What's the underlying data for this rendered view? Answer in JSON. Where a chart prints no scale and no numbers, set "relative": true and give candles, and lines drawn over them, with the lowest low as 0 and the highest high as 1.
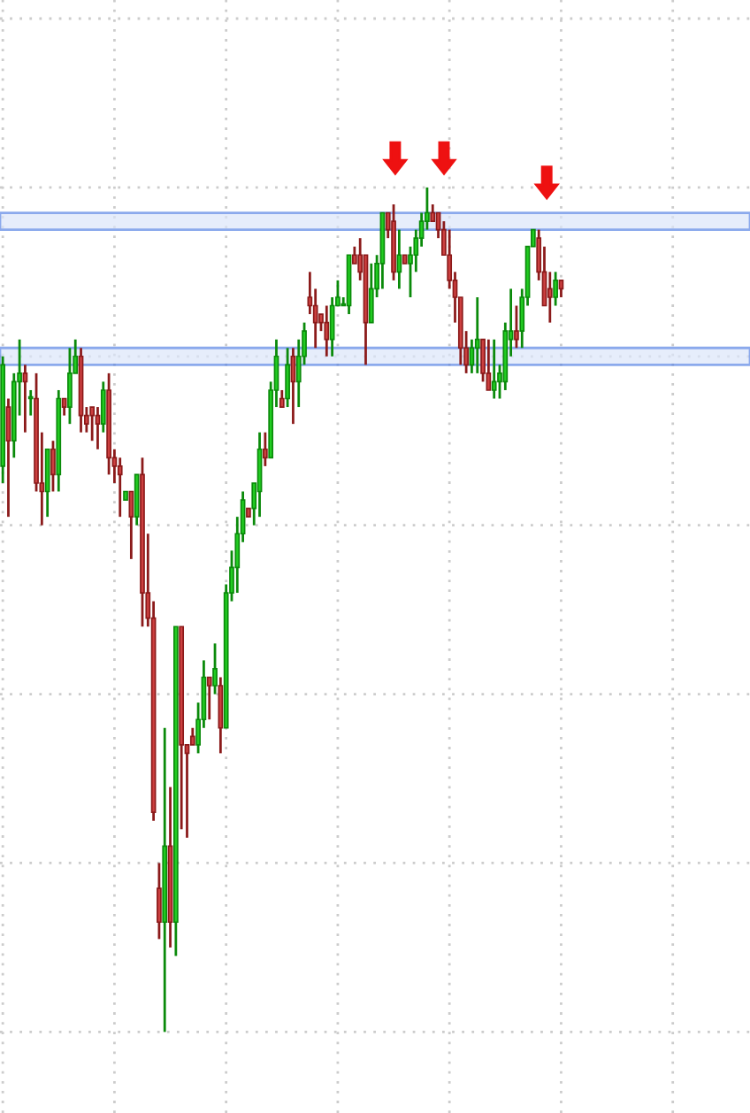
{
  "chart_data": {
    "type": "candlestick",
    "relative": true,
    "grid": true,
    "categories": [
      null,
      null,
      null,
      null,
      null,
      null,
      null,
      null,
      null,
      null,
      null,
      null,
      null,
      null,
      null,
      null,
      null,
      null,
      null,
      null,
      null,
      null,
      null,
      null,
      null,
      null,
      null,
      null,
      null,
      null,
      null,
      null,
      null,
      null,
      null,
      null,
      null,
      null,
      null,
      null,
      null,
      null,
      null,
      null,
      null,
      null,
      null,
      null,
      null,
      null,
      null,
      null,
      null,
      null,
      null,
      null,
      null,
      null,
      null,
      null,
      null,
      null,
      null,
      null,
      null,
      null,
      null,
      null,
      null,
      null,
      null,
      null,
      null,
      null,
      null,
      null,
      null,
      null,
      null,
      null,
      null,
      null,
      null,
      null,
      null,
      null,
      null,
      null,
      null,
      null,
      null,
      null,
      null,
      null,
      null,
      null,
      null,
      null,
      null,
      null,
      null
    ],
    "ohlc": [
      [
        0.67,
        0.8,
        0.65,
        0.79
      ],
      [
        0.74,
        0.75,
        0.61,
        0.7
      ],
      [
        0.7,
        0.78,
        0.68,
        0.77
      ],
      [
        0.77,
        0.82,
        0.73,
        0.78
      ],
      [
        0.78,
        0.79,
        0.71,
        0.77
      ],
      [
        0.75,
        0.76,
        0.73,
        0.75
      ],
      [
        0.75,
        0.78,
        0.64,
        0.65
      ],
      [
        0.65,
        0.71,
        0.6,
        0.64
      ],
      [
        0.64,
        0.69,
        0.61,
        0.69
      ],
      [
        0.69,
        0.7,
        0.64,
        0.66
      ],
      [
        0.66,
        0.76,
        0.64,
        0.75
      ],
      [
        0.75,
        0.75,
        0.73,
        0.74
      ],
      [
        0.74,
        0.81,
        0.72,
        0.78
      ],
      [
        0.78,
        0.82,
        0.78,
        0.8
      ],
      [
        0.8,
        0.81,
        0.71,
        0.73
      ],
      [
        0.73,
        0.74,
        0.71,
        0.72
      ],
      [
        0.74,
        0.74,
        0.7,
        0.73
      ],
      [
        0.73,
        0.74,
        0.69,
        0.72
      ],
      [
        0.72,
        0.77,
        0.71,
        0.76
      ],
      [
        0.76,
        0.78,
        0.66,
        0.68
      ],
      [
        0.68,
        0.69,
        0.65,
        0.67
      ],
      [
        0.67,
        0.68,
        0.61,
        0.66
      ],
      [
        0.63,
        0.64,
        0.63,
        0.64
      ],
      [
        0.64,
        0.64,
        0.56,
        0.61
      ],
      [
        0.61,
        0.66,
        0.6,
        0.66
      ],
      [
        0.66,
        0.68,
        0.48,
        0.52
      ],
      [
        0.52,
        0.59,
        0.48,
        0.49
      ],
      [
        0.49,
        0.51,
        0.25,
        0.26
      ],
      [
        0.17,
        0.2,
        0.11,
        0.13
      ],
      [
        0.13,
        0.36,
        0.0,
        0.22
      ],
      [
        0.22,
        0.29,
        0.1,
        0.13
      ],
      [
        0.13,
        0.48,
        0.09,
        0.48
      ],
      [
        0.48,
        0.48,
        0.24,
        0.34
      ],
      [
        0.34,
        0.34,
        0.23,
        0.33
      ],
      [
        0.35,
        0.36,
        0.34,
        0.34
      ],
      [
        0.34,
        0.39,
        0.33,
        0.37
      ],
      [
        0.37,
        0.44,
        0.36,
        0.42
      ],
      [
        0.42,
        0.42,
        0.37,
        0.41
      ],
      [
        0.41,
        0.46,
        0.4,
        0.43
      ],
      [
        0.41,
        0.42,
        0.33,
        0.36
      ],
      [
        0.36,
        0.53,
        0.36,
        0.52
      ],
      [
        0.52,
        0.57,
        0.51,
        0.55
      ],
      [
        0.55,
        0.61,
        0.52,
        0.59
      ],
      [
        0.59,
        0.64,
        0.58,
        0.63
      ],
      [
        0.62,
        0.62,
        0.61,
        0.61
      ],
      [
        0.62,
        0.65,
        0.6,
        0.65
      ],
      [
        0.64,
        0.71,
        0.61,
        0.69
      ],
      [
        0.69,
        0.71,
        0.67,
        0.68
      ],
      [
        0.68,
        0.77,
        0.68,
        0.76
      ],
      [
        0.76,
        0.82,
        0.74,
        0.8
      ],
      [
        0.75,
        0.76,
        0.74,
        0.74
      ],
      [
        0.75,
        0.81,
        0.74,
        0.79
      ],
      [
        0.8,
        0.81,
        0.72,
        0.77
      ],
      [
        0.77,
        0.82,
        0.74,
        0.8
      ],
      [
        0.8,
        0.84,
        0.79,
        0.83
      ],
      [
        0.87,
        0.9,
        0.85,
        0.86
      ],
      [
        0.86,
        0.88,
        0.81,
        0.84
      ],
      [
        0.85,
        0.85,
        0.83,
        0.84
      ],
      [
        0.84,
        0.86,
        0.8,
        0.82
      ],
      [
        0.82,
        0.87,
        0.8,
        0.86
      ],
      [
        0.86,
        0.89,
        0.86,
        0.87
      ],
      [
        0.86,
        0.87,
        0.86,
        0.86
      ],
      [
        0.86,
        0.92,
        0.85,
        0.92
      ],
      [
        0.92,
        0.93,
        0.91,
        0.91
      ],
      [
        0.92,
        0.94,
        0.89,
        0.9
      ],
      [
        0.92,
        0.92,
        0.79,
        0.84
      ],
      [
        0.84,
        0.91,
        0.84,
        0.88
      ],
      [
        0.88,
        0.92,
        0.87,
        0.91
      ],
      [
        0.91,
        0.97,
        0.88,
        0.97
      ],
      [
        0.97,
        0.97,
        0.94,
        0.95
      ],
      [
        0.96,
        0.98,
        0.89,
        0.9
      ],
      [
        0.9,
        0.95,
        0.88,
        0.92
      ],
      [
        0.92,
        0.92,
        0.91,
        0.91
      ],
      [
        0.91,
        0.93,
        0.87,
        0.92
      ],
      [
        0.92,
        0.95,
        0.9,
        0.94
      ],
      [
        0.94,
        0.97,
        0.93,
        0.96
      ],
      [
        0.96,
        1.0,
        0.95,
        0.97
      ],
      [
        0.97,
        0.98,
        0.96,
        0.96
      ],
      [
        0.97,
        0.97,
        0.94,
        0.95
      ],
      [
        0.95,
        0.96,
        0.92,
        0.92
      ],
      [
        0.92,
        0.95,
        0.88,
        0.89
      ],
      [
        0.89,
        0.9,
        0.84,
        0.87
      ],
      [
        0.87,
        0.87,
        0.79,
        0.81
      ],
      [
        0.81,
        0.83,
        0.78,
        0.79
      ],
      [
        0.79,
        0.82,
        0.78,
        0.81
      ],
      [
        0.81,
        0.87,
        0.78,
        0.82
      ],
      [
        0.82,
        0.82,
        0.77,
        0.78
      ],
      [
        0.78,
        0.82,
        0.76,
        0.76
      ],
      [
        0.76,
        0.82,
        0.75,
        0.77
      ],
      [
        0.77,
        0.79,
        0.75,
        0.78
      ],
      [
        0.77,
        0.84,
        0.76,
        0.83
      ],
      [
        0.82,
        0.88,
        0.8,
        0.83
      ],
      [
        0.83,
        0.86,
        0.81,
        0.82
      ],
      [
        0.83,
        0.88,
        0.81,
        0.87
      ],
      [
        0.87,
        0.93,
        0.86,
        0.93
      ],
      [
        0.93,
        0.95,
        0.93,
        0.95
      ],
      [
        0.94,
        0.95,
        0.89,
        0.9
      ],
      [
        0.9,
        0.93,
        0.86,
        0.86
      ],
      [
        0.88,
        0.9,
        0.84,
        0.87
      ],
      [
        0.87,
        0.9,
        0.86,
        0.89
      ],
      [
        0.89,
        0.89,
        0.87,
        0.88
      ]
    ],
    "bands": [
      {
        "axis": "y",
        "from": 0.95,
        "to": 0.97,
        "color": "#dce6fa"
      },
      {
        "axis": "y",
        "from": 0.79,
        "to": 0.81,
        "color": "#dce6fa"
      }
    ]
  }
}
